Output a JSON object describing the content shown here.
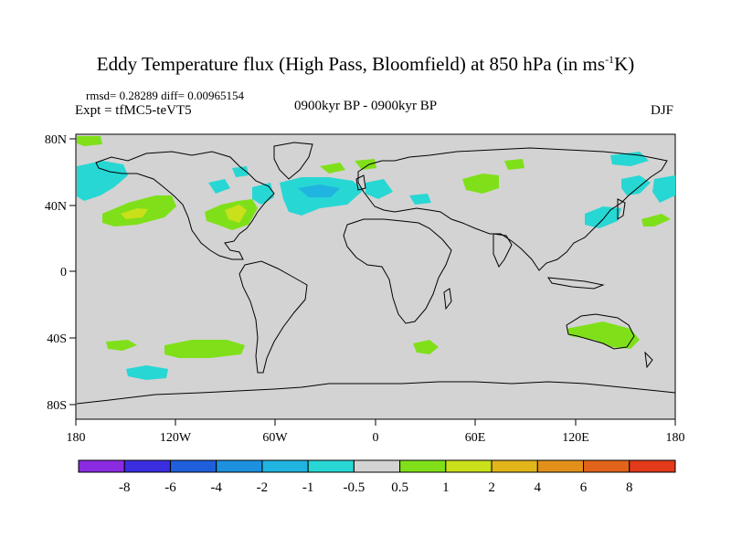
{
  "title": {
    "main": "Eddy Temperature flux (High Pass, Bloomfield) at 850 hPa (in ms",
    "sup": "-1",
    "tail": "K)"
  },
  "stats": "rmsd= 0.28289 diff= 0.00965154",
  "experiment": "Expt = tfMC5-teVT5",
  "period": "0900kyr BP - 0900kyr BP",
  "season": "DJF",
  "axes": {
    "x_ticks": [
      "180",
      "120W",
      "60W",
      "0",
      "60E",
      "120E",
      "180"
    ],
    "y_ticks": [
      "80N",
      "40N",
      "0",
      "40S",
      "80S"
    ]
  },
  "colorbar": {
    "colors": [
      "#8a2be2",
      "#3a2ee0",
      "#1f5fdc",
      "#1e90e0",
      "#20b4e0",
      "#27d7d4",
      "#d3d3d3",
      "#7fe01a",
      "#c9e01a",
      "#e2b51a",
      "#e2901a",
      "#e2641a",
      "#e23a1a"
    ],
    "labels": [
      "-8",
      "-6",
      "-4",
      "-2",
      "-1",
      "-0.5",
      "0.5",
      "1",
      "2",
      "4",
      "6",
      "8"
    ]
  },
  "colors": {
    "land_background": "#d3d3d3",
    "positive_light": "#7fe01a",
    "positive_mid": "#c9e01a",
    "negative_light": "#27d7d4",
    "negative_mid": "#20b4e0"
  }
}
